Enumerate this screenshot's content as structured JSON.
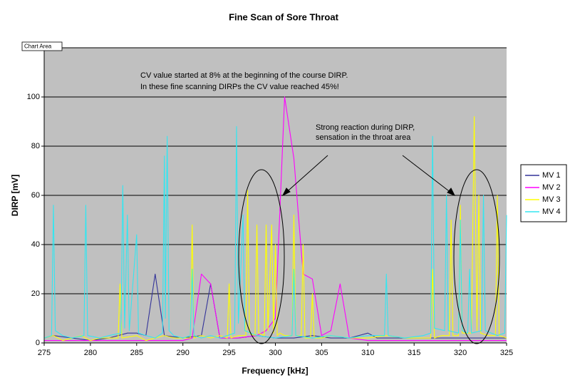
{
  "chart_data": {
    "type": "line",
    "title": "Fine Scan of Sore Throat",
    "x_label": "Frequency [kHz]",
    "y_label": "DIRP [mV]",
    "tooltip": "Chart Area",
    "annotations": [
      "CV value started at 8% at the beginning of the course DIRP.",
      "In these fine scanning DIRPs the CV value reached 45%!",
      "Strong reaction during DIRP,",
      "sensation in the throat area"
    ],
    "xlim": [
      275,
      325
    ],
    "xticks": [
      275,
      280,
      285,
      290,
      295,
      300,
      305,
      310,
      315,
      320,
      325
    ],
    "ylim": [
      0,
      120
    ],
    "yticks": [
      0,
      20,
      40,
      60,
      80,
      100,
      120
    ],
    "grid": true,
    "legend": "right",
    "series": [
      {
        "name": "MV 1",
        "color": "#333399",
        "x": [
          275,
          276,
          278,
          280,
          282,
          284,
          285,
          286,
          287,
          288,
          290,
          292,
          293,
          294,
          296,
          298,
          300,
          302,
          304,
          306,
          308,
          310,
          311,
          314,
          316,
          318,
          320,
          322,
          325
        ],
        "values": [
          2,
          3,
          2,
          1,
          2,
          4,
          4,
          3,
          28,
          3,
          2,
          3,
          24,
          2,
          2,
          3,
          2,
          2,
          3,
          2,
          2,
          4,
          2,
          2,
          2,
          2,
          2,
          2,
          2
        ]
      },
      {
        "name": "MV 2",
        "color": "#ff00ff",
        "x": [
          275,
          280,
          285,
          290,
          291,
          292,
          293,
          294,
          296,
          298,
          299,
          300,
          301,
          302,
          303,
          304,
          305,
          306,
          307,
          308,
          310,
          315,
          320,
          325
        ],
        "values": [
          1,
          1,
          1,
          1,
          2,
          28,
          24,
          2,
          2,
          3,
          5,
          10,
          100,
          75,
          28,
          26,
          3,
          5,
          24,
          2,
          1,
          1,
          1,
          1
        ]
      },
      {
        "name": "MV 3",
        "color": "#ffff00",
        "x": [
          275,
          276,
          277,
          278,
          279,
          280,
          281,
          282,
          283,
          283.2,
          283.4,
          285,
          286,
          287,
          288,
          289,
          290,
          290.8,
          291,
          291.2,
          292,
          293,
          294,
          294.8,
          295,
          295.2,
          296,
          296.8,
          297,
          297.2,
          297.8,
          298,
          298.2,
          298.8,
          299,
          299.2,
          299.6,
          299.8,
          300,
          300.2,
          300.5,
          301,
          301.8,
          302,
          302.2,
          302.8,
          303,
          303.2,
          303.8,
          304,
          304.2,
          305,
          306,
          308,
          310,
          312,
          314,
          316,
          316.8,
          317,
          317.2,
          318,
          318.8,
          319,
          319.2,
          319.8,
          320,
          320.2,
          321.2,
          321.5,
          321.8,
          322,
          322.2,
          323,
          323.8,
          324,
          324.2,
          325
        ],
        "values": [
          2,
          3,
          1,
          2,
          3,
          1,
          2,
          2,
          2,
          24,
          2,
          3,
          1,
          2,
          3,
          2,
          2,
          2,
          48,
          2,
          3,
          2,
          3,
          2,
          24,
          2,
          3,
          3,
          62,
          4,
          3,
          48,
          4,
          3,
          48,
          5,
          48,
          4,
          40,
          3,
          4,
          3,
          3,
          52,
          3,
          3,
          40,
          2,
          2,
          20,
          2,
          2,
          3,
          2,
          2,
          3,
          2,
          2,
          2,
          30,
          2,
          3,
          3,
          50,
          3,
          3,
          56,
          4,
          4,
          92,
          5,
          60,
          4,
          3,
          3,
          60,
          3,
          2
        ]
      },
      {
        "name": "MV 4",
        "color": "#33e6f0",
        "x": [
          275,
          275.8,
          276,
          276.2,
          277,
          278,
          279.3,
          279.5,
          279.7,
          281,
          282,
          283.3,
          283.5,
          283.7,
          284,
          284.2,
          285,
          285.2,
          286,
          287,
          287.8,
          288,
          288.1,
          288.3,
          288.5,
          289,
          290,
          290.8,
          291,
          291.2,
          292,
          293,
          294,
          295.6,
          295.8,
          296,
          296.5,
          296.7,
          298,
          300,
          301.8,
          302,
          302.2,
          304,
          306,
          308,
          310,
          311.8,
          312,
          312.2,
          314,
          316,
          316.8,
          317,
          317.2,
          318.3,
          318.5,
          318.7,
          319.8,
          320,
          320.2,
          320.8,
          321,
          321.2,
          322.3,
          322.5,
          322.7,
          324,
          324.8,
          325
        ],
        "values": [
          2,
          3,
          56,
          5,
          3,
          2,
          3,
          56,
          3,
          2,
          3,
          4,
          64,
          6,
          52,
          5,
          44,
          4,
          3,
          2,
          4,
          76,
          10,
          84,
          5,
          3,
          2,
          3,
          30,
          3,
          2,
          3,
          2,
          4,
          88,
          8,
          52,
          5,
          3,
          2,
          3,
          30,
          3,
          2,
          3,
          2,
          3,
          3,
          28,
          3,
          2,
          3,
          4,
          84,
          6,
          5,
          60,
          5,
          4,
          50,
          5,
          4,
          30,
          4,
          5,
          60,
          5,
          3,
          4,
          52
        ]
      }
    ]
  }
}
